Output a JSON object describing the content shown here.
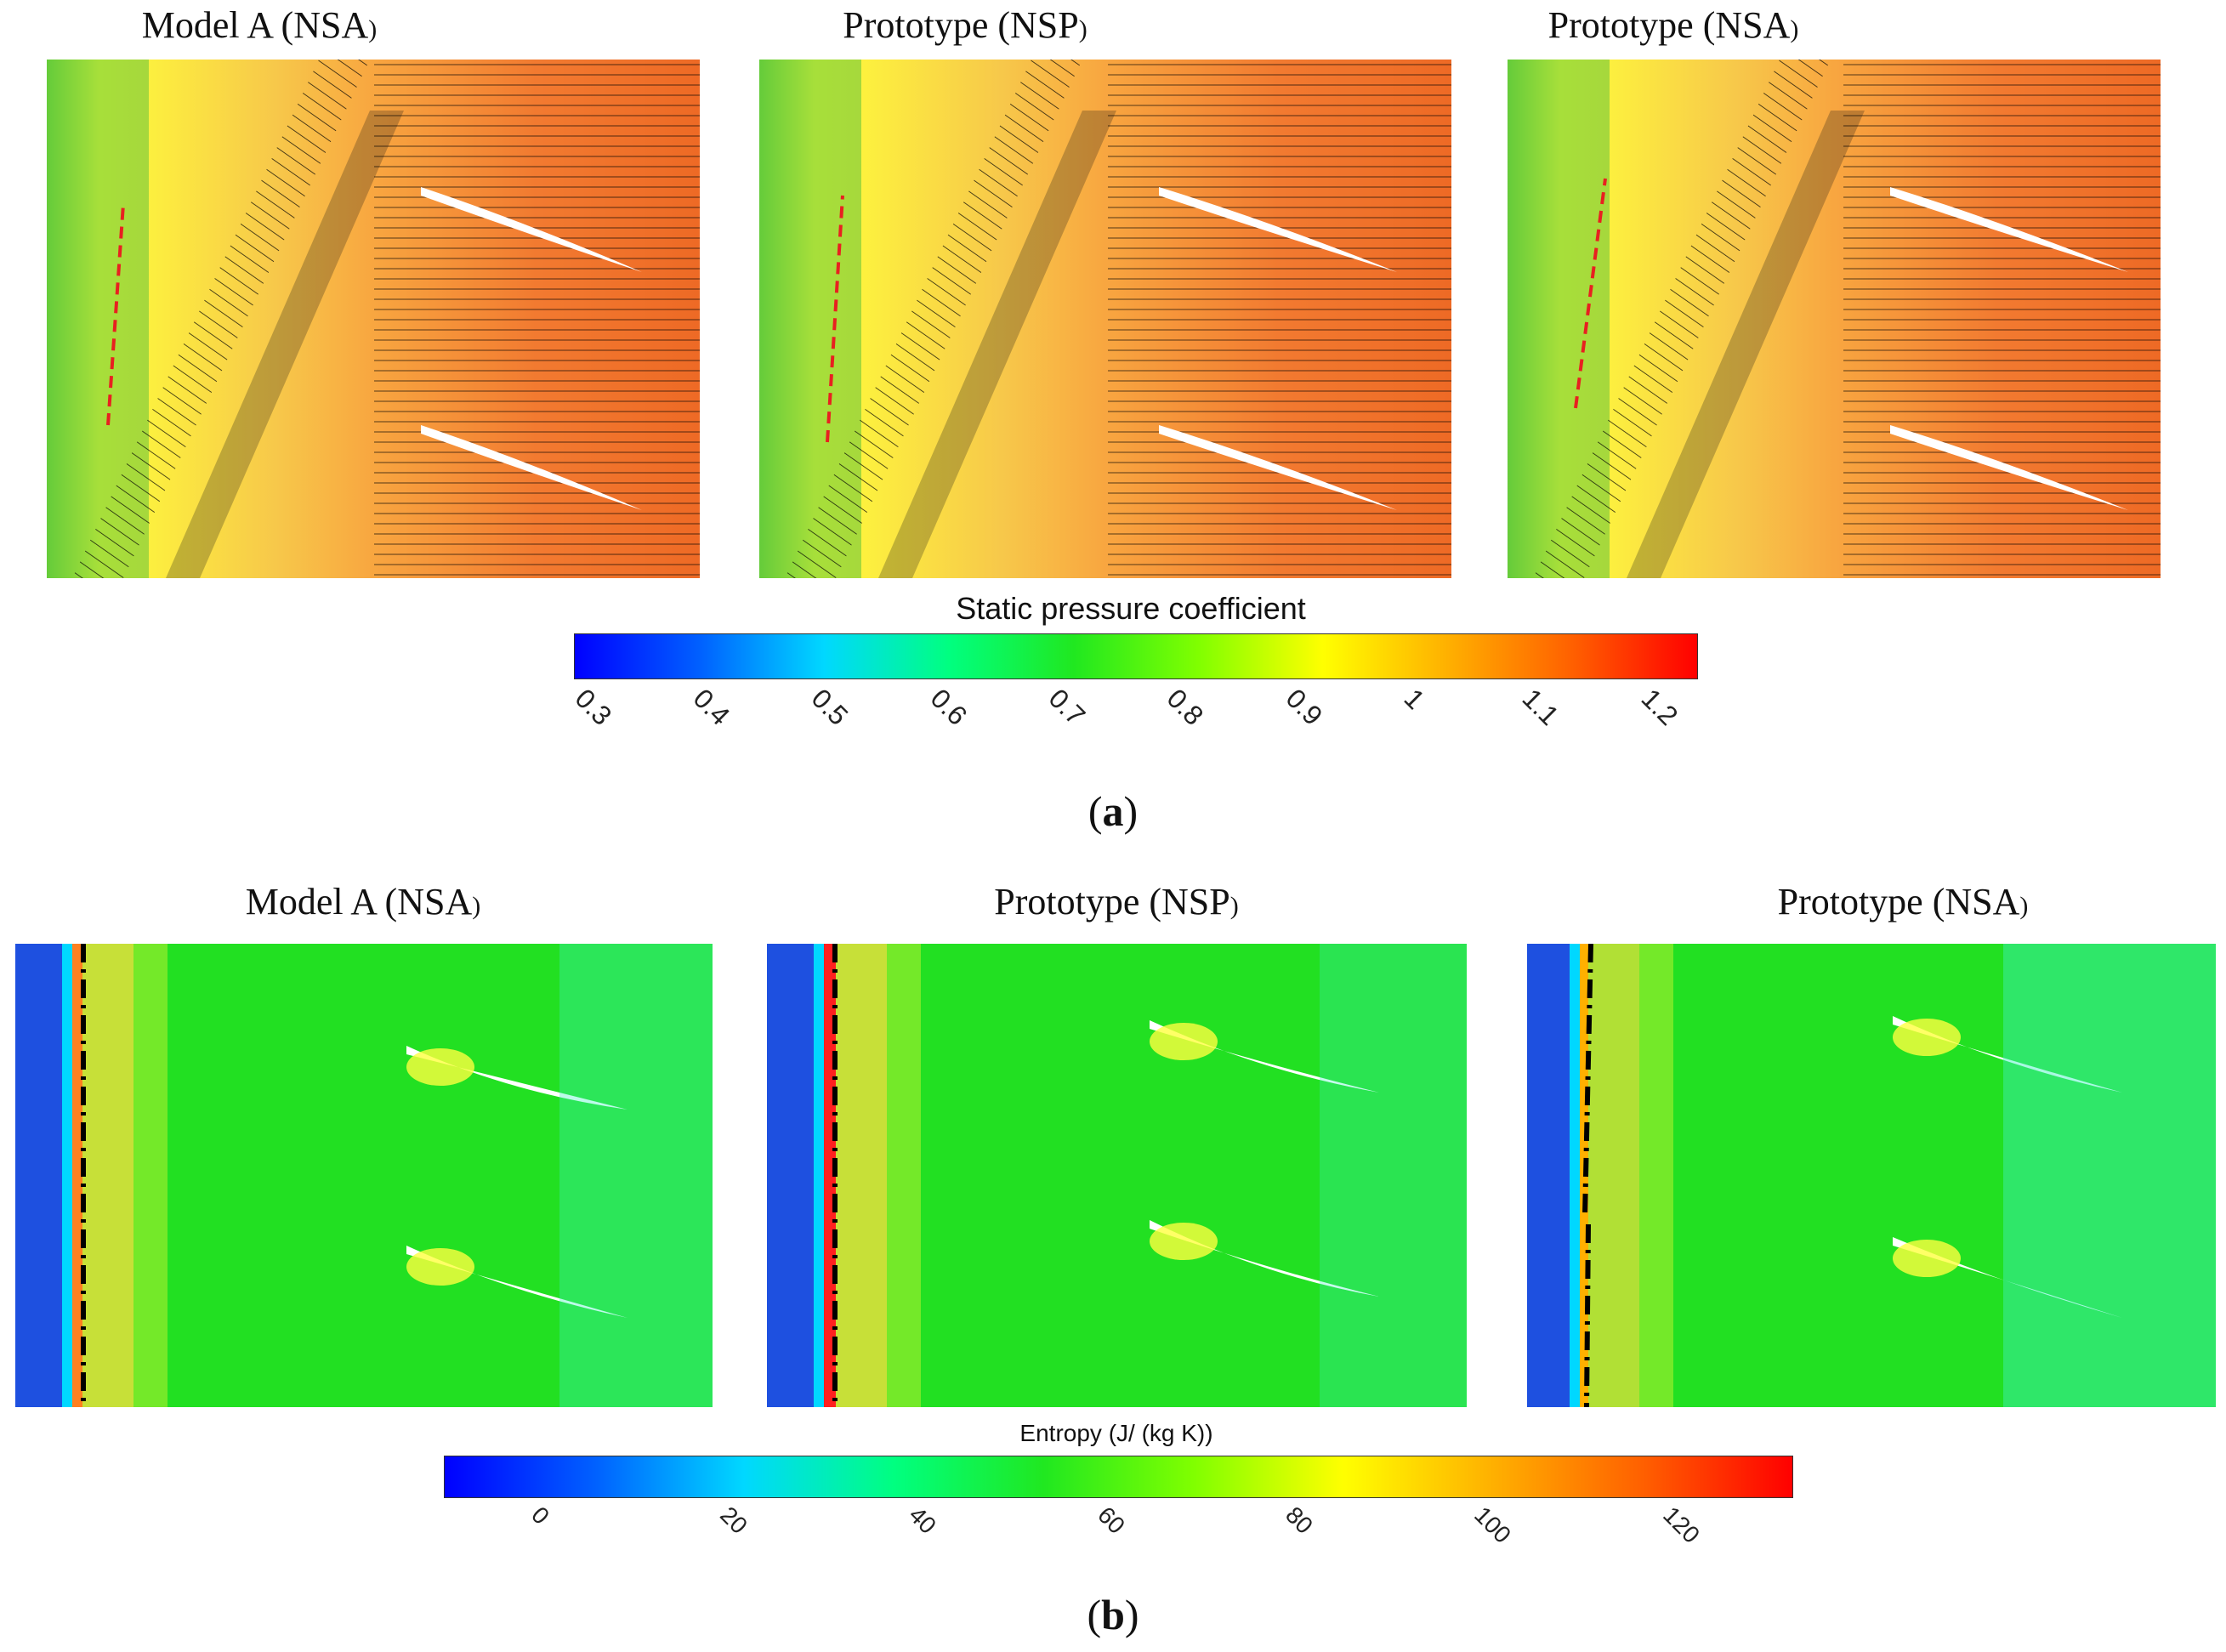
{
  "figure_a": {
    "panel_titles": [
      {
        "main": "Model A (NSA",
        "sub": ")"
      },
      {
        "main": "Prototype (NSP",
        "sub": ")"
      },
      {
        "main": "Prototype (NSA",
        "sub": ")"
      }
    ],
    "colorbar": {
      "title": "Static pressure coefficient",
      "ticks": [
        "0.3",
        "0.4",
        "0.5",
        "0.6",
        "0.7",
        "0.8",
        "0.9",
        "1",
        "1.1",
        "1.2"
      ]
    },
    "caption": {
      "open": "(",
      "letter": "a",
      "close": ")"
    }
  },
  "figure_b": {
    "panel_titles": [
      {
        "main": "Model A (NSA",
        "sub": ")"
      },
      {
        "main": "Prototype (NSP",
        "sub": ")"
      },
      {
        "main": "Prototype (NSA",
        "sub": ")"
      }
    ],
    "colorbar": {
      "title": "Entropy (J/ (kg K))",
      "ticks": [
        "0",
        "20",
        "40",
        "60",
        "80",
        "100",
        "120"
      ]
    },
    "caption": {
      "open": "(",
      "letter": "b",
      "close": ")"
    }
  },
  "colors": {
    "rainbow": [
      "#0000ff",
      "#0060ff",
      "#00d8ff",
      "#00ff80",
      "#20e820",
      "#80ff00",
      "#ffff00",
      "#ffb000",
      "#ff6000",
      "#ff0000"
    ],
    "contour_line": "#000000",
    "arrow": "#e82020"
  }
}
